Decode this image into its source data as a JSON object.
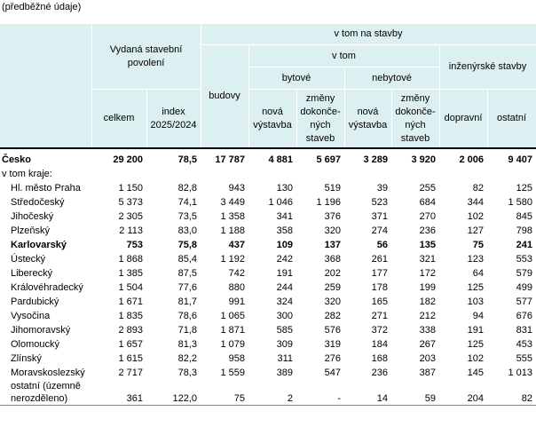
{
  "note": "(předběžné údaje)",
  "header": {
    "permits": "Vydaná stavební povolení",
    "of_which_by_type": "v tom na stavby",
    "buildings": "budovy",
    "of_which": "v tom",
    "residential": "bytové",
    "nonresidential": "nebytové",
    "civil": "inženýrské stavby",
    "total": "celkem",
    "index": "index 2025/2024",
    "res_new": "nová výstavba",
    "res_changes": "změny dokonče-ných staveb",
    "nonres_new": "nová výstavba",
    "nonres_changes": "změny dokonče-ných staveb",
    "transport": "dopravní",
    "other": "ostatní"
  },
  "table": {
    "total_row": {
      "label": "Česko",
      "emphasis": true,
      "values": [
        "29 200",
        "78,5",
        "17 787",
        "4 881",
        "5 697",
        "3 289",
        "3 920",
        "2 006",
        "9 407"
      ]
    },
    "subheading": "v tom kraje:",
    "rows": [
      {
        "label": "Hl. město Praha",
        "values": [
          "1 150",
          "82,8",
          "943",
          "130",
          "519",
          "39",
          "255",
          "82",
          "125"
        ]
      },
      {
        "label": "Středočeský",
        "values": [
          "5 373",
          "74,1",
          "3 449",
          "1 046",
          "1 196",
          "523",
          "684",
          "344",
          "1 580"
        ]
      },
      {
        "label": "Jihočeský",
        "values": [
          "2 305",
          "73,5",
          "1 358",
          "341",
          "376",
          "371",
          "270",
          "102",
          "845"
        ]
      },
      {
        "label": "Plzeňský",
        "values": [
          "2 113",
          "83,0",
          "1 188",
          "358",
          "320",
          "274",
          "236",
          "127",
          "798"
        ]
      },
      {
        "label": "Karlovarský",
        "emphasis": true,
        "values": [
          "753",
          "75,8",
          "437",
          "109",
          "137",
          "56",
          "135",
          "75",
          "241"
        ]
      },
      {
        "label": "Ústecký",
        "values": [
          "1 868",
          "85,4",
          "1 192",
          "242",
          "368",
          "261",
          "321",
          "123",
          "553"
        ]
      },
      {
        "label": "Liberecký",
        "values": [
          "1 385",
          "87,5",
          "742",
          "191",
          "202",
          "177",
          "172",
          "64",
          "579"
        ]
      },
      {
        "label": "Královéhradecký",
        "values": [
          "1 504",
          "77,6",
          "880",
          "244",
          "259",
          "178",
          "199",
          "125",
          "499"
        ]
      },
      {
        "label": "Pardubický",
        "values": [
          "1 671",
          "81,7",
          "991",
          "324",
          "320",
          "165",
          "182",
          "103",
          "577"
        ]
      },
      {
        "label": "Vysočina",
        "values": [
          "1 835",
          "78,6",
          "1 065",
          "300",
          "282",
          "271",
          "212",
          "94",
          "676"
        ]
      },
      {
        "label": "Jihomoravský",
        "values": [
          "2 893",
          "71,8",
          "1 871",
          "585",
          "576",
          "372",
          "338",
          "191",
          "831"
        ]
      },
      {
        "label": "Olomoucký",
        "values": [
          "1 657",
          "81,3",
          "1 079",
          "309",
          "319",
          "184",
          "267",
          "125",
          "453"
        ]
      },
      {
        "label": "Zlínský",
        "values": [
          "1 615",
          "82,2",
          "958",
          "311",
          "276",
          "168",
          "203",
          "102",
          "555"
        ]
      },
      {
        "label": "Moravskoslezský",
        "values": [
          "2 717",
          "78,3",
          "1 559",
          "389",
          "547",
          "236",
          "387",
          "145",
          "1 013"
        ]
      },
      {
        "label": "ostatní (územně nerozděleno)",
        "values": [
          "361",
          "122,0",
          "75",
          "2",
          "-",
          "14",
          "59",
          "204",
          "82"
        ]
      }
    ]
  }
}
